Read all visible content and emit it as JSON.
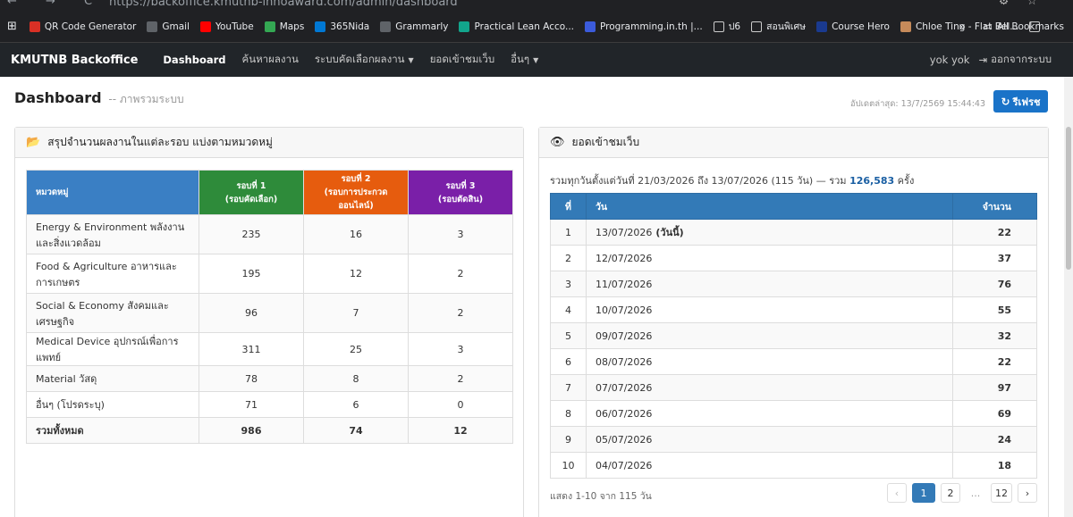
{
  "browser": {
    "url": "https://backoffice.kmutnb-innoaward.com/admin/dashboard",
    "bookmarks": [
      {
        "label": "QR Code Generator",
        "color": "#d93025",
        "icon": "qr-icon"
      },
      {
        "label": "Gmail",
        "color": "#5f6368",
        "icon": "globe-icon"
      },
      {
        "label": "YouTube",
        "color": "#ff0000",
        "icon": "youtube-icon"
      },
      {
        "label": "Maps",
        "color": "#34a853",
        "icon": "maps-icon"
      },
      {
        "label": "365Nida",
        "color": "#0078d4",
        "icon": "grid-icon"
      },
      {
        "label": "Grammarly",
        "color": "#5f6368",
        "icon": "globe-icon"
      },
      {
        "label": "Practical Lean Acco...",
        "color": "#12a58c",
        "icon": "s-icon"
      },
      {
        "label": "Programming.in.th |...",
        "color": "#3b5bdb",
        "icon": "page-icon"
      },
      {
        "label": "ป6",
        "color": "#202124",
        "icon": "folder-icon"
      },
      {
        "label": "สอนพิเศษ",
        "color": "#202124",
        "icon": "folder-icon"
      },
      {
        "label": "Course Hero",
        "color": "#1a3a8f",
        "icon": "star-icon"
      },
      {
        "label": "Chloe Ting - Flat Bel...",
        "color": "#c58a5a",
        "icon": "avatar-icon"
      },
      {
        "label": "",
        "color": "#202124",
        "icon": "folder-icon"
      }
    ],
    "all_bookmarks": "All Bookmarks"
  },
  "navbar": {
    "brand": "KMUTNB Backoffice",
    "items": [
      {
        "label": "Dashboard",
        "active": true,
        "dropdown": false
      },
      {
        "label": "ค้นหาผลงาน",
        "active": false,
        "dropdown": false
      },
      {
        "label": "ระบบคัดเลือกผลงาน",
        "active": false,
        "dropdown": true
      },
      {
        "label": "ยอดเข้าชมเว็บ",
        "active": false,
        "dropdown": false
      },
      {
        "label": "อื่นๆ",
        "active": false,
        "dropdown": true
      }
    ],
    "user": "yok yok",
    "logout": "ออกจากระบบ"
  },
  "header": {
    "title": "Dashboard",
    "subtitle": "-- ภาพรวมระบบ",
    "updated": "อัปเดตล่าสุด: 13/7/2569 15:44:43",
    "refresh": "รีเฟรช"
  },
  "left_panel": {
    "title": "สรุปจำนวนผลงานในแต่ละรอบ แบ่งตามหมวดหมู่",
    "columns": [
      {
        "label": "หมวดหมู่",
        "sub": "",
        "color": "#3a7fc4"
      },
      {
        "label": "รอบที่ 1",
        "sub": "(รอบคัดเลือก)",
        "color": "#2e8b3a"
      },
      {
        "label": "รอบที่ 2",
        "sub": "(รอบการประกวดออนไลน์)",
        "color": "#e65c0e"
      },
      {
        "label": "รอบที่ 3",
        "sub": "(รอบตัดสิน)",
        "color": "#7a1fa8"
      }
    ],
    "rows": [
      {
        "category": "Energy & Environment พลังงานและสิ่งแวดล้อม",
        "r1": "235",
        "r2": "16",
        "r3": "3"
      },
      {
        "category": "Food & Agriculture อาหารและการเกษตร",
        "r1": "195",
        "r2": "12",
        "r3": "2"
      },
      {
        "category": "Social & Economy สังคมและเศรษฐกิจ",
        "r1": "96",
        "r2": "7",
        "r3": "2"
      },
      {
        "category": "Medical Device อุปกรณ์เพื่อการแพทย์",
        "r1": "311",
        "r2": "25",
        "r3": "3"
      },
      {
        "category": "Material วัสดุ",
        "r1": "78",
        "r2": "8",
        "r3": "2"
      },
      {
        "category": "อื่นๆ (โปรดระบุ)",
        "r1": "71",
        "r2": "6",
        "r3": "0"
      }
    ],
    "total": {
      "category": "รวมทั้งหมด",
      "r1": "986",
      "r2": "74",
      "r3": "12"
    }
  },
  "right_panel": {
    "title": "ยอดเข้าชมเว็บ",
    "summary_prefix": "รวมทุกวันตั้งแต่วันที่ 21/03/2026 ถึง 13/07/2026 (115 วัน) — รวม",
    "summary_count": "126,583",
    "summary_suffix": "ครั้ง",
    "columns": {
      "idx": "ที่",
      "date": "วัน",
      "count": "จำนวน"
    },
    "rows": [
      {
        "idx": "1",
        "date": "13/07/2026",
        "today": "(วันนี้)",
        "count": "22"
      },
      {
        "idx": "2",
        "date": "12/07/2026",
        "today": "",
        "count": "37"
      },
      {
        "idx": "3",
        "date": "11/07/2026",
        "today": "",
        "count": "76"
      },
      {
        "idx": "4",
        "date": "10/07/2026",
        "today": "",
        "count": "55"
      },
      {
        "idx": "5",
        "date": "09/07/2026",
        "today": "",
        "count": "32"
      },
      {
        "idx": "6",
        "date": "08/07/2026",
        "today": "",
        "count": "22"
      },
      {
        "idx": "7",
        "date": "07/07/2026",
        "today": "",
        "count": "97"
      },
      {
        "idx": "8",
        "date": "06/07/2026",
        "today": "",
        "count": "69"
      },
      {
        "idx": "9",
        "date": "05/07/2026",
        "today": "",
        "count": "24"
      },
      {
        "idx": "10",
        "date": "04/07/2026",
        "today": "",
        "count": "18"
      }
    ],
    "footer": "แสดง 1-10 จาก 115 วัน",
    "pagination": {
      "prev": "‹",
      "pages": [
        "1",
        "2"
      ],
      "dots": "...",
      "last": "12",
      "next": "›"
    }
  }
}
